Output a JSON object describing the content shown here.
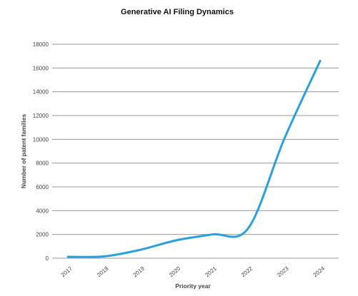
{
  "chart_data": {
    "type": "line",
    "title": "Generative AI Filing Dynamics",
    "xlabel": "Priority year",
    "ylabel": "Number of patent families",
    "x": [
      "2017",
      "2018",
      "2019",
      "2020",
      "2021",
      "2022",
      "2023",
      "2024"
    ],
    "series": [
      {
        "values": [
          120,
          150,
          700,
          1500,
          2000,
          2500,
          10000,
          16600
        ],
        "color": "#2CA0DC"
      }
    ],
    "ylim": [
      0,
      18000
    ],
    "yticks": [
      0,
      2000,
      4000,
      6000,
      8000,
      10000,
      12000,
      14000,
      16000,
      18000
    ],
    "grid": true,
    "legend": "none"
  }
}
